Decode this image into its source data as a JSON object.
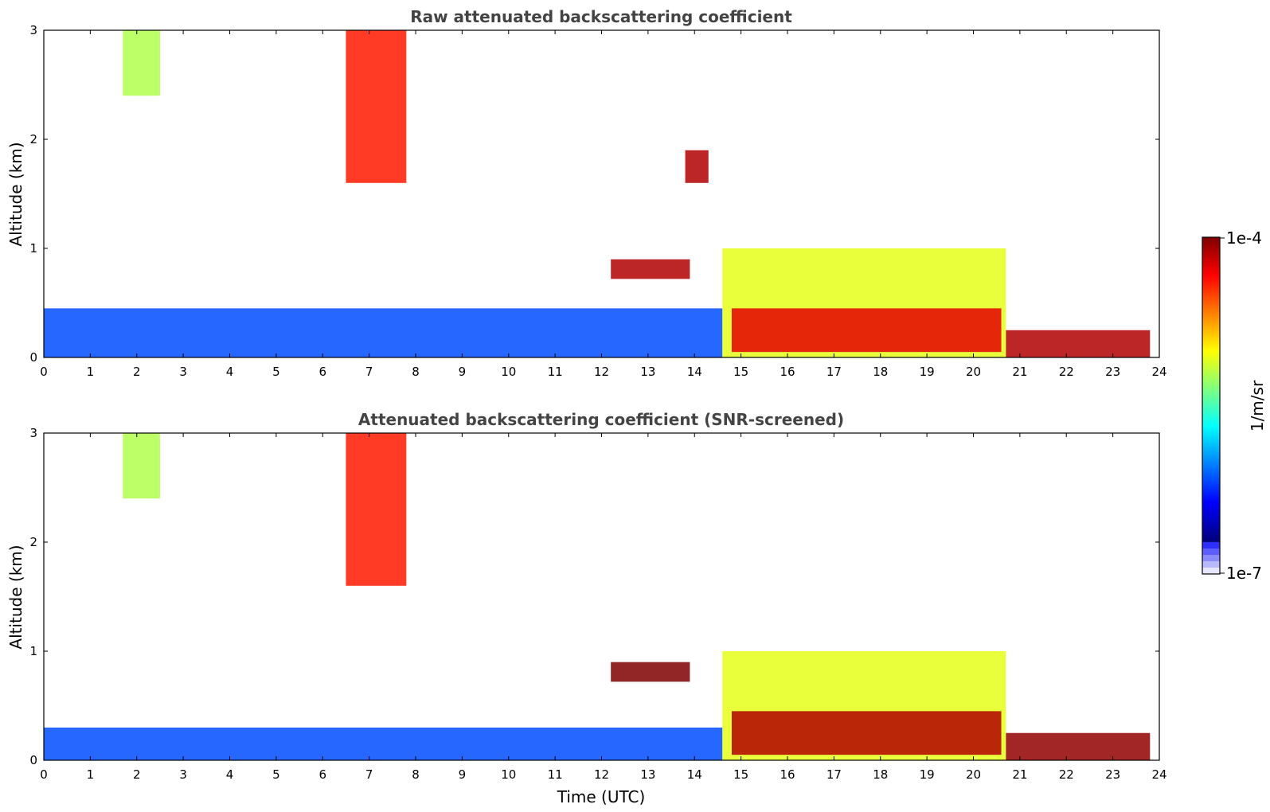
{
  "colors": {
    "jet": [
      "#00007f",
      "#0000ff",
      "#007fff",
      "#00ffff",
      "#7fff7f",
      "#ffff00",
      "#ff7f00",
      "#ff0000",
      "#7f0000"
    ],
    "low_shades": [
      "#e6e6ff",
      "#b8b8ff",
      "#8a8aff",
      "#5c5cff",
      "#2e2eff"
    ]
  },
  "colorbar": {
    "max_label": "1e-4",
    "min_label": "1e-7",
    "unit_label": "1/m/sr"
  },
  "chart_data": [
    {
      "type": "heatmap",
      "title": "Raw attenuated backscattering coefficient",
      "xlabel": "",
      "ylabel": "Altitude (km)",
      "xlim": [
        0,
        24
      ],
      "ylim": [
        0,
        3
      ],
      "xticks": [
        "0",
        "1",
        "2",
        "3",
        "4",
        "5",
        "6",
        "7",
        "8",
        "9",
        "10",
        "11",
        "12",
        "13",
        "14",
        "15",
        "16",
        "17",
        "18",
        "19",
        "20",
        "21",
        "22",
        "23",
        "24"
      ],
      "yticks": [
        "0",
        "1",
        "2",
        "3"
      ],
      "color_scale": "log",
      "clim": [
        1e-07,
        0.0001
      ],
      "features": [
        {
          "x": [
            0,
            14.6
          ],
          "y": [
            0,
            0.45
          ],
          "level": 0.2
        },
        {
          "x": [
            1.7,
            2.5
          ],
          "y": [
            2.4,
            3.0
          ],
          "level": 0.55
        },
        {
          "x": [
            6.5,
            7.8
          ],
          "y": [
            1.6,
            3.0
          ],
          "level": 0.85
        },
        {
          "x": [
            12.2,
            13.9
          ],
          "y": [
            0.72,
            0.9
          ],
          "level": 0.95
        },
        {
          "x": [
            13.8,
            14.3
          ],
          "y": [
            1.6,
            1.9
          ],
          "level": 0.95
        },
        {
          "x": [
            14.6,
            20.7
          ],
          "y": [
            0.0,
            1.0
          ],
          "level": 0.6
        },
        {
          "x": [
            14.8,
            20.6
          ],
          "y": [
            0.05,
            0.45
          ],
          "level": 0.9
        },
        {
          "x": [
            20.7,
            23.8
          ],
          "y": [
            0.0,
            0.25
          ],
          "level": 0.95
        }
      ]
    },
    {
      "type": "heatmap",
      "title": "Attenuated backscattering coefficient (SNR-screened)",
      "xlabel": "Time (UTC)",
      "ylabel": "Altitude (km)",
      "xlim": [
        0,
        24
      ],
      "ylim": [
        0,
        3
      ],
      "xticks": [
        "0",
        "1",
        "2",
        "3",
        "4",
        "5",
        "6",
        "7",
        "8",
        "9",
        "10",
        "11",
        "12",
        "13",
        "14",
        "15",
        "16",
        "17",
        "18",
        "19",
        "20",
        "21",
        "22",
        "23",
        "24"
      ],
      "yticks": [
        "0",
        "1",
        "2",
        "3"
      ],
      "color_scale": "log",
      "clim": [
        1e-07,
        0.0001
      ],
      "features": [
        {
          "x": [
            0,
            14.6
          ],
          "y": [
            0,
            0.3
          ],
          "level": 0.2
        },
        {
          "x": [
            1.7,
            2.5
          ],
          "y": [
            2.4,
            3.0
          ],
          "level": 0.55
        },
        {
          "x": [
            6.5,
            7.8
          ],
          "y": [
            1.6,
            3.0
          ],
          "level": 0.85
        },
        {
          "x": [
            12.2,
            13.9
          ],
          "y": [
            0.72,
            0.9
          ],
          "level": 1.0
        },
        {
          "x": [
            14.6,
            20.7
          ],
          "y": [
            0.0,
            1.0
          ],
          "level": 0.6
        },
        {
          "x": [
            14.8,
            20.6
          ],
          "y": [
            0.05,
            0.45
          ],
          "level": 0.95
        },
        {
          "x": [
            20.7,
            23.8
          ],
          "y": [
            0.0,
            0.25
          ],
          "level": 0.98
        }
      ]
    }
  ]
}
